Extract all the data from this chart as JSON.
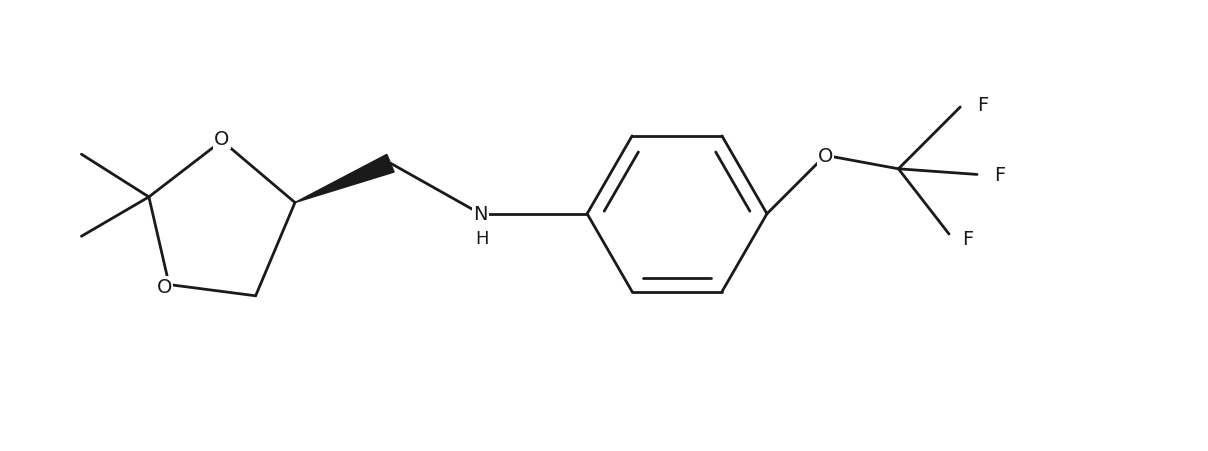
{
  "background_color": "#ffffff",
  "line_color": "#1a1a1a",
  "line_width": 2.0,
  "font_size": 14,
  "figsize": [
    12.08,
    4.52
  ],
  "dpi": 100,
  "xlim": [
    0.3,
    11.0
  ],
  "ylim": [
    0.5,
    4.2
  ]
}
